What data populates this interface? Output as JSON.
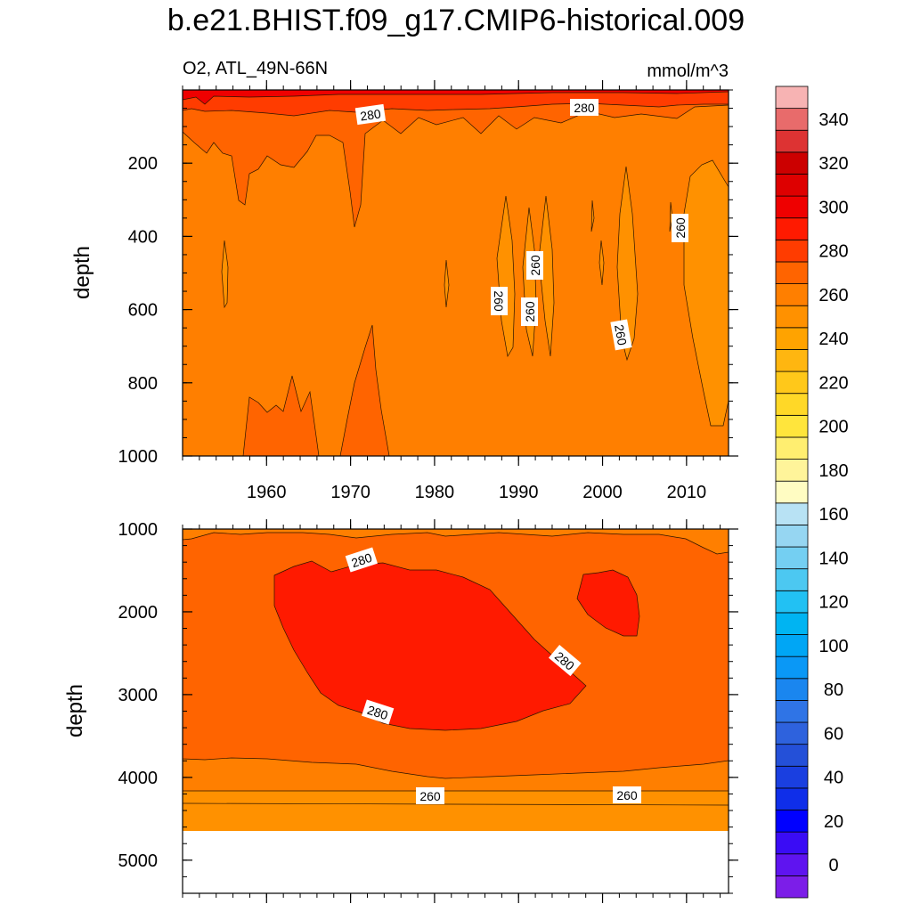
{
  "title": "b.e21.BHIST.f09_g17.CMIP6-historical.009",
  "chart_data": {
    "type": "heatmap",
    "variable_label": "O2, ATL_49N-66N",
    "units_label": "mmol/m^3",
    "x_label": "",
    "x_range": [
      1950,
      2015
    ],
    "x_ticks": [
      1960,
      1970,
      1980,
      1990,
      2000,
      2010
    ],
    "panels": [
      {
        "name": "upper",
        "ylabel": "depth",
        "y_range": [
          0,
          1000
        ],
        "y_ticks": [
          200,
          400,
          600,
          800,
          1000
        ],
        "dominant_band": "260-270",
        "contour_labels": [
          "280",
          "280",
          "260",
          "260",
          "260",
          "260",
          "260"
        ]
      },
      {
        "name": "lower",
        "ylabel": "depth",
        "y_range": [
          1000,
          5400
        ],
        "y_ticks": [
          1000,
          2000,
          3000,
          4000,
          5000
        ],
        "dominant_band": "270-280",
        "contour_labels": [
          "280",
          "280",
          "280",
          "260",
          "260"
        ]
      }
    ],
    "colorbar": {
      "levels": [
        -10,
        0,
        10,
        20,
        30,
        40,
        50,
        60,
        70,
        80,
        90,
        100,
        110,
        120,
        130,
        140,
        150,
        160,
        170,
        180,
        190,
        200,
        210,
        220,
        230,
        240,
        250,
        260,
        270,
        280,
        290,
        300,
        310,
        320,
        330,
        340,
        350,
        360
      ],
      "tick_labels": [
        "0",
        "20",
        "40",
        "60",
        "80",
        "100",
        "120",
        "140",
        "160",
        "180",
        "200",
        "220",
        "240",
        "260",
        "280",
        "300",
        "320",
        "340"
      ],
      "colors": [
        "#7c1ee8",
        "#5f14f0",
        "#3a0cf5",
        "#0000ff",
        "#0f2ee9",
        "#1a3fe0",
        "#2450d8",
        "#2e62dd",
        "#2f74e6",
        "#1a86ef",
        "#0a98f6",
        "#00a6f5",
        "#00b4f2",
        "#22c1f3",
        "#4cc8f1",
        "#74cff2",
        "#96d6f2",
        "#b8e2f4",
        "#fffcc2",
        "#fff49a",
        "#ffee70",
        "#ffe53c",
        "#ffd827",
        "#ffc81a",
        "#ffb610",
        "#ffa300",
        "#ff9100",
        "#ff7f00",
        "#ff6400",
        "#ff3c00",
        "#ff1a00",
        "#ef0000",
        "#de0000",
        "#cc0000",
        "#dd3333",
        "#e86b6b",
        "#f7b3b3"
      ]
    }
  }
}
